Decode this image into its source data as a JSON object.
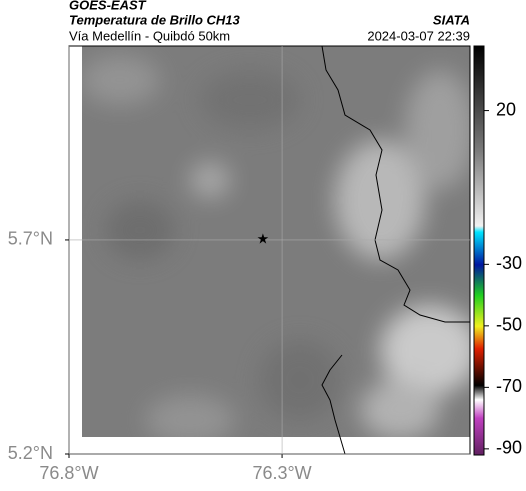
{
  "header": {
    "satellite": "GOES-EAST",
    "product": "Temperatura de Brillo CH13",
    "organization": "SIATA",
    "region": "Vía Medellín - Quibdó 50km",
    "datetime": "2024-03-07 22:39"
  },
  "map": {
    "xlim": [
      -76.8,
      -75.859
    ],
    "ylim": [
      5.2,
      6.153
    ],
    "xticks": [
      {
        "value": -76.8,
        "label": "76.8°W"
      },
      {
        "value": -76.3,
        "label": "76.3°W"
      }
    ],
    "yticks": [
      {
        "value": 5.2,
        "label": "5.2°N"
      },
      {
        "value": 5.7,
        "label": "5.7°N"
      }
    ],
    "grid": true,
    "marker": {
      "lon": -76.345,
      "lat": 5.7
    }
  },
  "colorbar": {
    "lim": [
      -92,
      41
    ],
    "ticks": [
      20,
      -30,
      -50,
      -70,
      -90
    ]
  }
}
